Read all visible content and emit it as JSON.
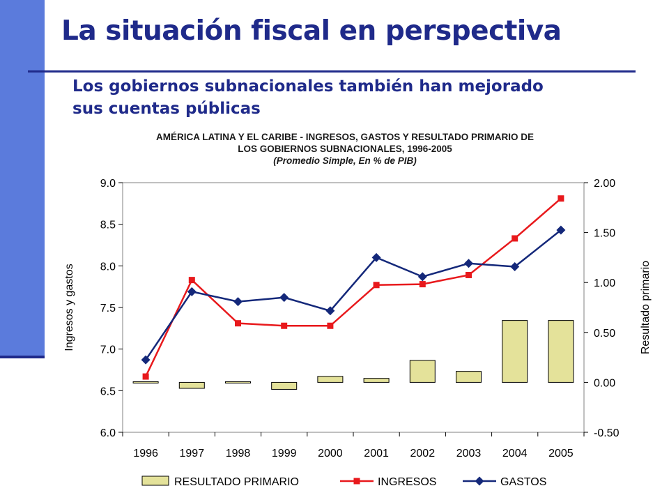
{
  "slide": {
    "title": "La situación fiscal en perspectiva",
    "subtitle_line1": "Los gobiernos subnacionales también han mejorado",
    "subtitle_line2": "sus cuentas públicas",
    "accent_color": "#1f2a8a",
    "sidebar_color": "#5b7bdc"
  },
  "chart_data": {
    "type": "combo",
    "title_line1": "AMÉRICA LATINA Y EL CARIBE - INGRESOS, GASTOS Y RESULTADO PRIMARIO DE",
    "title_line2": "LOS GOBIERNOS SUBNACIONALES, 1996-2005",
    "subtitle": "(Promedio Simple, En %  de PIB)",
    "categories": [
      "1996",
      "1997",
      "1998",
      "1999",
      "2000",
      "2001",
      "2002",
      "2003",
      "2004",
      "2005"
    ],
    "ylabel": "Ingresos y gastos",
    "ylim": [
      6.0,
      9.0
    ],
    "yticks": [
      "6.0",
      "6.5",
      "7.0",
      "7.5",
      "8.0",
      "8.5",
      "9.0"
    ],
    "y2label": "Resultado primario",
    "y2lim": [
      -0.5,
      2.0
    ],
    "y2ticks": [
      "-0.50",
      "0.00",
      "0.50",
      "1.00",
      "1.50",
      "2.00"
    ],
    "grid": false,
    "legend_position": "bottom",
    "series": [
      {
        "name": "RESULTADO PRIMARIO",
        "type": "bar",
        "axis": "right",
        "color": "#e4e29a",
        "values": [
          0.0,
          -0.06,
          0.0,
          -0.07,
          0.06,
          0.04,
          0.22,
          0.11,
          0.62,
          0.62
        ]
      },
      {
        "name": "INGRESOS",
        "type": "line",
        "axis": "left",
        "color": "#e8191c",
        "marker": "square",
        "values": [
          6.67,
          7.83,
          7.31,
          7.28,
          7.28,
          7.77,
          7.78,
          7.89,
          8.33,
          8.81
        ]
      },
      {
        "name": "GASTOS",
        "type": "line",
        "axis": "left",
        "color": "#14287a",
        "marker": "diamond",
        "values": [
          6.87,
          7.69,
          7.57,
          7.62,
          7.46,
          8.1,
          7.87,
          8.03,
          7.99,
          8.43
        ]
      }
    ]
  }
}
